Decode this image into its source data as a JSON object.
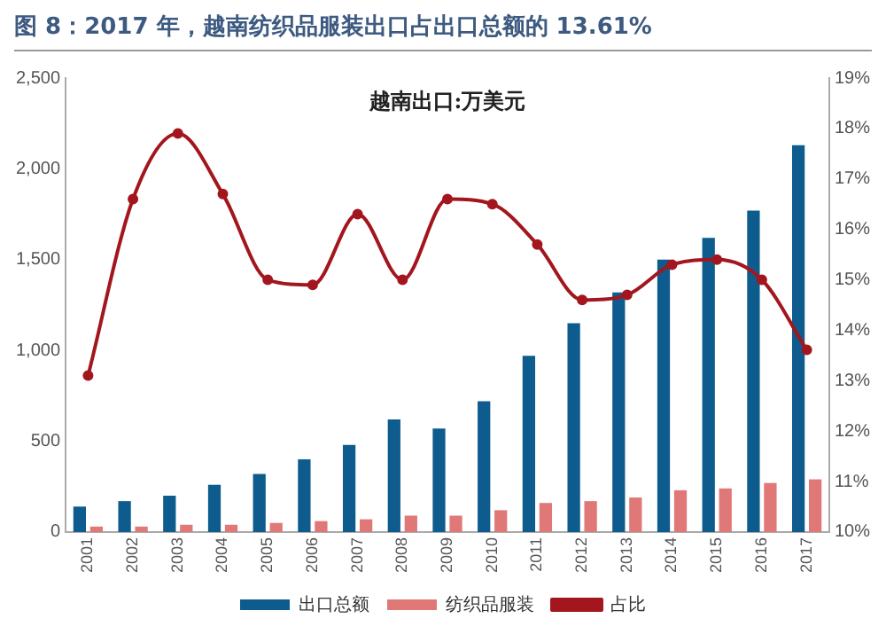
{
  "chart_data": {
    "type": "bar",
    "title": "图 8：2017 年，越南纺织品服装出口占出口总额的 13.61%",
    "subtitle": "越南出口:万美元",
    "categories": [
      "2001",
      "2002",
      "2003",
      "2004",
      "2005",
      "2006",
      "2007",
      "2008",
      "2009",
      "2010",
      "2011",
      "2012",
      "2013",
      "2014",
      "2015",
      "2016",
      "2017"
    ],
    "series": [
      {
        "name": "出口总额",
        "color": "#0e5b8e",
        "values": [
          140,
          170,
          200,
          260,
          320,
          400,
          480,
          620,
          570,
          720,
          970,
          1150,
          1320,
          1500,
          1620,
          1770,
          2130
        ]
      },
      {
        "name": "纺织品服装",
        "color": "#e07878",
        "values": [
          30,
          30,
          40,
          40,
          50,
          60,
          70,
          90,
          90,
          120,
          160,
          170,
          190,
          230,
          240,
          270,
          290
        ]
      },
      {
        "name": "占比",
        "type": "line",
        "axis": "y2",
        "color": "#a3161e",
        "marker": "circle",
        "values": [
          13.1,
          16.6,
          17.9,
          16.7,
          15.0,
          14.9,
          16.3,
          15.0,
          16.6,
          16.5,
          15.7,
          14.6,
          14.7,
          15.3,
          15.4,
          15.0,
          13.61
        ]
      }
    ],
    "ylim": [
      0,
      2500
    ],
    "yticks": [
      0,
      {
        "value": 500,
        "label": "500"
      },
      {
        "value": 1000,
        "label": "1,000"
      },
      {
        "value": 1500,
        "label": "1,500"
      },
      {
        "value": 2000,
        "label": "2,000"
      },
      {
        "value": 2500,
        "label": "2,500"
      }
    ],
    "y2lim": [
      10,
      19
    ],
    "y2ticks": [
      {
        "value": 10,
        "label": "10%"
      },
      {
        "value": 11,
        "label": "11%"
      },
      {
        "value": 12,
        "label": "12%"
      },
      {
        "value": 13,
        "label": "13%"
      },
      {
        "value": 14,
        "label": "14%"
      },
      {
        "value": 15,
        "label": "15%"
      },
      {
        "value": 16,
        "label": "16%"
      },
      {
        "value": 17,
        "label": "17%"
      },
      {
        "value": 18,
        "label": "18%"
      },
      {
        "value": 19,
        "label": "19%"
      }
    ],
    "grid": false,
    "legend": "bottom"
  }
}
